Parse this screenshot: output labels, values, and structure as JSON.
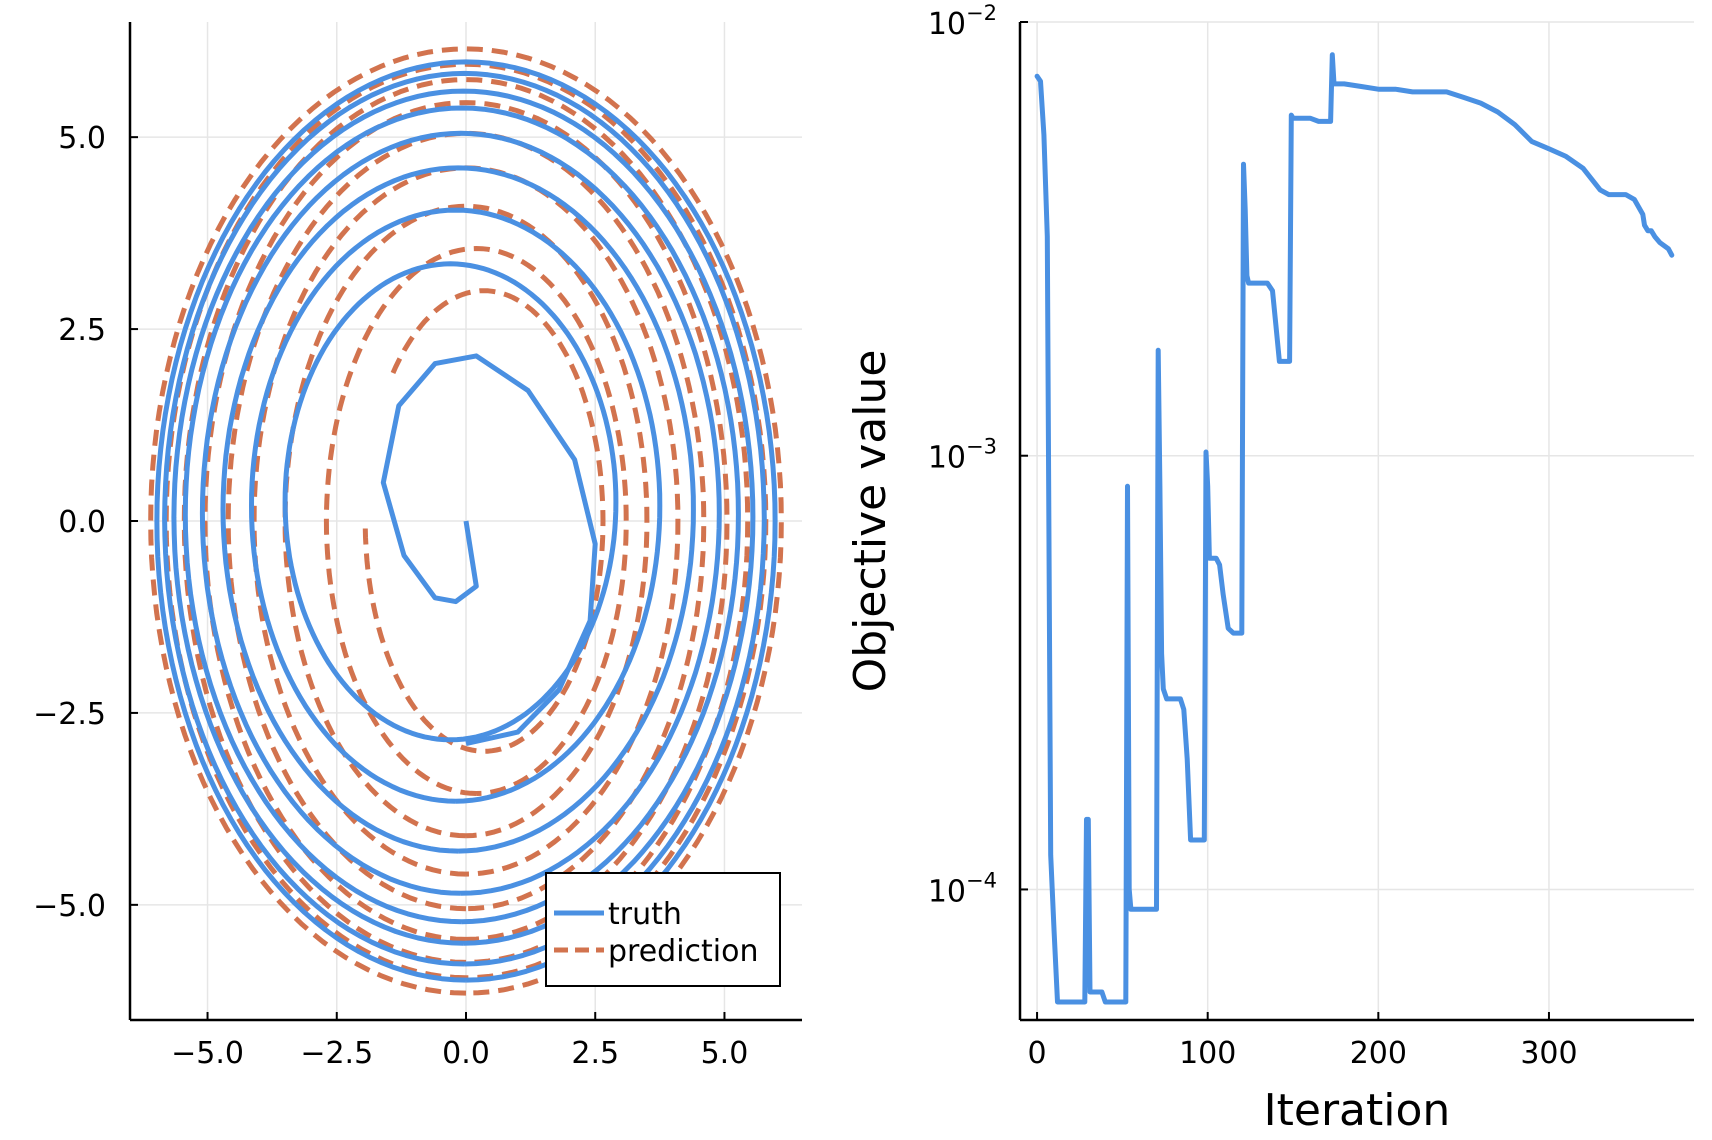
{
  "chart_data": [
    {
      "type": "line",
      "title": "",
      "xlabel": "",
      "ylabel": "",
      "xlim": [
        -6.5,
        6.5
      ],
      "ylim": [
        -6.5,
        6.5
      ],
      "xticks": [
        -5.0,
        -2.5,
        0.0,
        2.5,
        5.0
      ],
      "xtick_labels": [
        "−5.0",
        "−2.5",
        "0.0",
        "2.5",
        "5.0"
      ],
      "yticks": [
        -5.0,
        -2.5,
        0.0,
        2.5,
        5.0
      ],
      "ytick_labels": [
        "−5.0",
        "−2.5",
        "0.0",
        "2.5",
        "5.0"
      ],
      "grid": true,
      "legend": "bottom-right",
      "series": [
        {
          "name": "truth",
          "color": "#4a90e2",
          "style": "solid",
          "start": [
            0.0,
            0.0
          ],
          "points": [
            [
              0.0,
              0.0
            ],
            [
              0.2,
              -0.85
            ],
            [
              -0.2,
              -1.05
            ],
            [
              -0.6,
              -1.0
            ],
            [
              -1.2,
              -0.45
            ],
            [
              -1.6,
              0.5
            ],
            [
              -1.3,
              1.5
            ],
            [
              -0.6,
              2.05
            ],
            [
              0.2,
              2.15
            ],
            [
              1.2,
              1.7
            ],
            [
              2.1,
              0.8
            ],
            [
              2.5,
              -0.3
            ],
            [
              2.4,
              -1.3
            ],
            [
              1.8,
              -2.2
            ],
            [
              1.0,
              -2.75
            ],
            [
              0.0,
              -2.9
            ]
          ],
          "ellipses": [
            {
              "cx": -0.3,
              "cy": 0.25,
              "rx": 3.2,
              "ry": 3.1,
              "start_deg": 270,
              "sweep_deg": 360
            },
            {
              "cx": -0.2,
              "cy": 0.2,
              "rx": 3.95,
              "ry": 3.85,
              "start_deg": 270,
              "sweep_deg": 360
            },
            {
              "cx": -0.15,
              "cy": 0.15,
              "rx": 4.55,
              "ry": 4.45,
              "start_deg": 270,
              "sweep_deg": 360
            },
            {
              "cx": -0.1,
              "cy": 0.1,
              "rx": 5.0,
              "ry": 4.95,
              "start_deg": 270,
              "sweep_deg": 360
            },
            {
              "cx": -0.08,
              "cy": 0.08,
              "rx": 5.35,
              "ry": 5.3,
              "start_deg": 270,
              "sweep_deg": 360
            },
            {
              "cx": -0.05,
              "cy": 0.05,
              "rx": 5.6,
              "ry": 5.55,
              "start_deg": 270,
              "sweep_deg": 360
            },
            {
              "cx": -0.03,
              "cy": 0.03,
              "rx": 5.8,
              "ry": 5.8,
              "start_deg": 270,
              "sweep_deg": 360
            },
            {
              "cx": 0.0,
              "cy": 0.0,
              "rx": 5.98,
              "ry": 5.98,
              "start_deg": 270,
              "sweep_deg": 360
            }
          ]
        },
        {
          "name": "prediction",
          "color": "#d2734e",
          "style": "dashed",
          "ellipses": [
            {
              "cx": 0.35,
              "cy": 0.0,
              "rx": 2.3,
              "ry": 3.0,
              "start_deg": 140,
              "sweep_deg": -320
            },
            {
              "cx": 0.2,
              "cy": 0.0,
              "rx": 2.9,
              "ry": 3.55,
              "start_deg": 270,
              "sweep_deg": -360
            },
            {
              "cx": 0.0,
              "cy": 0.0,
              "rx": 3.5,
              "ry": 4.1,
              "start_deg": 270,
              "sweep_deg": -360
            },
            {
              "cx": 0.0,
              "cy": 0.0,
              "rx": 4.1,
              "ry": 4.6,
              "start_deg": 270,
              "sweep_deg": -360
            },
            {
              "cx": 0.0,
              "cy": 0.0,
              "rx": 4.6,
              "ry": 5.05,
              "start_deg": 270,
              "sweep_deg": -360
            },
            {
              "cx": 0.0,
              "cy": 0.0,
              "rx": 5.05,
              "ry": 5.45,
              "start_deg": 270,
              "sweep_deg": -360
            },
            {
              "cx": 0.0,
              "cy": 0.0,
              "rx": 5.45,
              "ry": 5.75,
              "start_deg": 270,
              "sweep_deg": -360
            },
            {
              "cx": 0.0,
              "cy": 0.0,
              "rx": 5.8,
              "ry": 5.95,
              "start_deg": 270,
              "sweep_deg": -360
            },
            {
              "cx": 0.0,
              "cy": 0.0,
              "rx": 6.1,
              "ry": 6.15,
              "start_deg": 270,
              "sweep_deg": -360
            }
          ]
        }
      ]
    },
    {
      "type": "line",
      "title": "",
      "xlabel": "Iteration",
      "ylabel": "Objective value",
      "xlim": [
        -10,
        385
      ],
      "ylim": [
        5e-05,
        0.01
      ],
      "yscale": "log",
      "xticks": [
        0,
        100,
        200,
        300
      ],
      "xtick_labels": [
        "0",
        "100",
        "200",
        "300"
      ],
      "yticks": [
        0.0001,
        0.001,
        0.01
      ],
      "ytick_labels": [
        {
          "base": "10",
          "exp": "−4"
        },
        {
          "base": "10",
          "exp": "−3"
        },
        {
          "base": "10",
          "exp": "−2"
        }
      ],
      "grid": true,
      "series": [
        {
          "name": "",
          "color": "#4a90e2",
          "x": [
            0,
            2,
            4,
            6,
            8,
            10,
            12,
            14,
            16,
            20,
            25,
            28,
            29,
            30,
            31,
            33,
            35,
            38,
            40,
            45,
            50,
            52,
            53,
            54,
            55,
            57,
            60,
            65,
            70,
            71,
            72,
            73,
            74,
            76,
            80,
            84,
            86,
            88,
            90,
            95,
            98,
            99,
            100,
            101,
            102,
            103,
            105,
            107,
            109,
            112,
            115,
            118,
            120,
            121,
            122,
            123,
            124,
            126,
            130,
            135,
            138,
            140,
            142,
            145,
            148,
            149,
            150,
            152,
            160,
            165,
            172,
            173,
            174,
            176,
            180,
            190,
            200,
            210,
            220,
            230,
            240,
            250,
            260,
            270,
            280,
            290,
            300,
            310,
            320,
            330,
            335,
            340,
            345,
            350,
            355,
            356,
            358,
            360,
            362,
            365,
            370,
            372
          ],
          "y": [
            0.0075,
            0.0073,
            0.0055,
            0.0032,
            0.00012,
            8e-05,
            5.5e-05,
            5.5e-05,
            5.5e-05,
            5.5e-05,
            5.5e-05,
            5.5e-05,
            0.000145,
            0.000145,
            5.8e-05,
            5.8e-05,
            5.8e-05,
            5.8e-05,
            5.5e-05,
            5.5e-05,
            5.5e-05,
            5.5e-05,
            0.00085,
            0.0001,
            9e-05,
            9e-05,
            9e-05,
            9e-05,
            9e-05,
            0.00175,
            0.00085,
            0.00035,
            0.00029,
            0.000275,
            0.000275,
            0.000275,
            0.00026,
            0.0002,
            0.00013,
            0.00013,
            0.00013,
            0.00102,
            0.00085,
            0.00058,
            0.00058,
            0.00058,
            0.00058,
            0.00056,
            0.00048,
            0.0004,
            0.00039,
            0.00039,
            0.00039,
            0.0047,
            0.0037,
            0.0026,
            0.0025,
            0.0025,
            0.0025,
            0.0025,
            0.0024,
            0.002,
            0.00165,
            0.00165,
            0.00165,
            0.0061,
            0.006,
            0.006,
            0.006,
            0.0059,
            0.0059,
            0.0084,
            0.0072,
            0.0072,
            0.0072,
            0.0071,
            0.007,
            0.007,
            0.0069,
            0.0069,
            0.0069,
            0.0067,
            0.0065,
            0.0062,
            0.0058,
            0.0053,
            0.0051,
            0.0049,
            0.0046,
            0.0041,
            0.004,
            0.004,
            0.004,
            0.0039,
            0.0036,
            0.0034,
            0.0033,
            0.0033,
            0.0032,
            0.0031,
            0.003,
            0.0029
          ]
        }
      ]
    }
  ]
}
